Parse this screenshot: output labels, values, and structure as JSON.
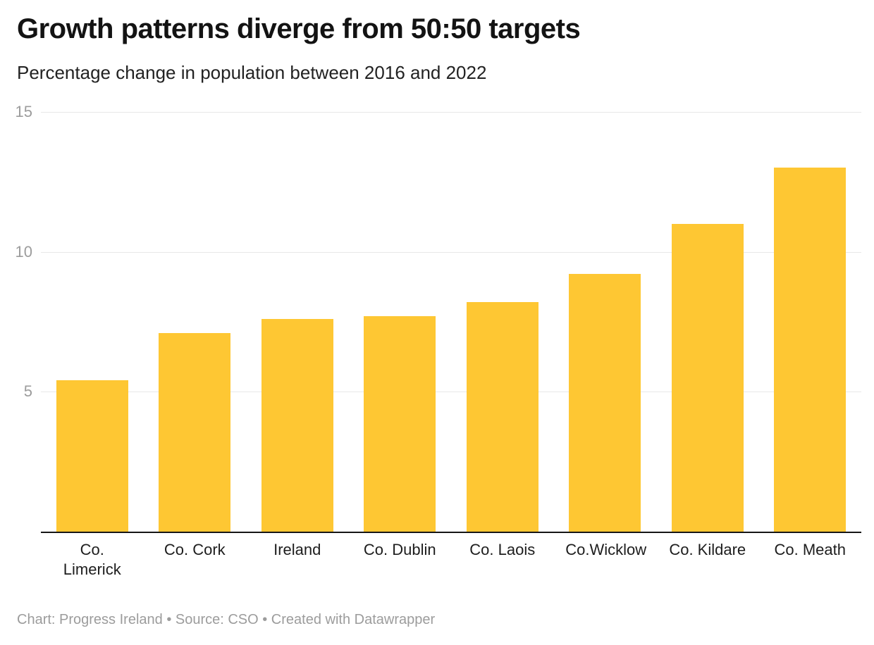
{
  "header": {
    "title": "Growth patterns diverge from 50:50 targets",
    "subtitle": "Percentage change in population between 2016 and 2022"
  },
  "chart_data": {
    "type": "bar",
    "title": "Growth patterns diverge from 50:50 targets",
    "subtitle": "Percentage change in population between 2016 and 2022",
    "categories": [
      "Co. Limerick",
      "Co. Cork",
      "Ireland",
      "Co. Dublin",
      "Co. Laois",
      "Co.Wicklow",
      "Co. Kildare",
      "Co. Meath"
    ],
    "values": [
      5.4,
      7.1,
      7.6,
      7.7,
      8.2,
      9.2,
      11,
      13
    ],
    "xlabel": "",
    "ylabel": "",
    "ylim": [
      0,
      15
    ],
    "yticks": [
      5,
      10,
      15
    ],
    "grid": true,
    "legend": "none",
    "bar_color": "#fec733",
    "axis_line_color": "#161616",
    "gridline_color": "#e8e8e8",
    "tick_label_color": "#9c9c9c"
  },
  "footer": {
    "text": "Chart: Progress Ireland • Source: CSO • Created with Datawrapper"
  }
}
